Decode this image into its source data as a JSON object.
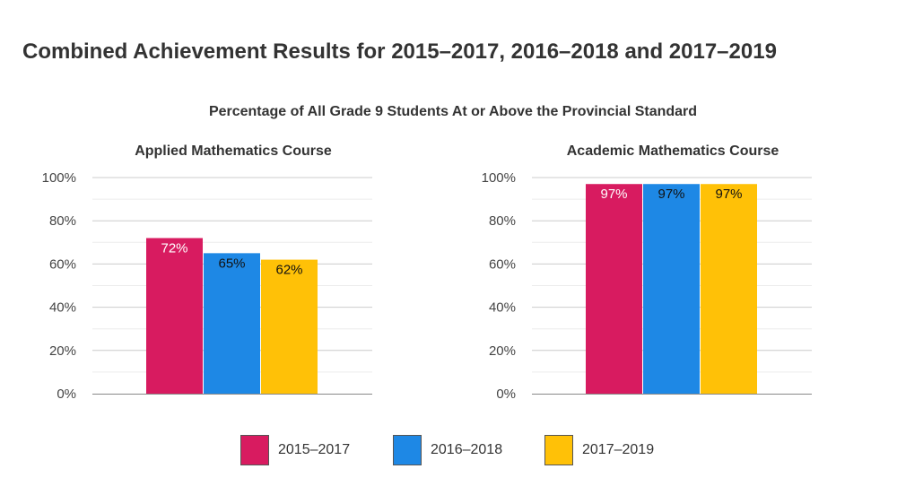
{
  "header": {
    "title": "Combined Achievement Results for 2015–2017, 2016–2018 and 2017–2019",
    "subtitle": "Percentage of All Grade 9 Students At or Above the Provincial Standard"
  },
  "colors": {
    "series": [
      "#d81b60",
      "#1e88e5",
      "#ffc107"
    ],
    "label_text": [
      "#ffffff",
      "#111111",
      "#111111"
    ]
  },
  "legend": {
    "items": [
      {
        "label": "2015–2017",
        "color": "#d81b60"
      },
      {
        "label": "2016–2018",
        "color": "#1e88e5"
      },
      {
        "label": "2017–2019",
        "color": "#ffc107"
      }
    ]
  },
  "chart_data": [
    {
      "type": "bar",
      "title": "Applied Mathematics Course",
      "categories": [
        "2015–2017",
        "2016–2018",
        "2017–2019"
      ],
      "values": [
        72,
        65,
        62
      ],
      "value_labels": [
        "72%",
        "65%",
        "62%"
      ],
      "ylim": [
        0,
        100
      ],
      "yticks": [
        "0%",
        "20%",
        "40%",
        "60%",
        "80%",
        "100%"
      ],
      "grid": true,
      "legend": "bottom"
    },
    {
      "type": "bar",
      "title": "Academic Mathematics Course",
      "categories": [
        "2015–2017",
        "2016–2018",
        "2017–2019"
      ],
      "values": [
        97,
        97,
        97
      ],
      "value_labels": [
        "97%",
        "97%",
        "97%"
      ],
      "ylim": [
        0,
        100
      ],
      "yticks": [
        "0%",
        "20%",
        "40%",
        "60%",
        "80%",
        "100%"
      ],
      "grid": true,
      "legend": "bottom"
    }
  ]
}
